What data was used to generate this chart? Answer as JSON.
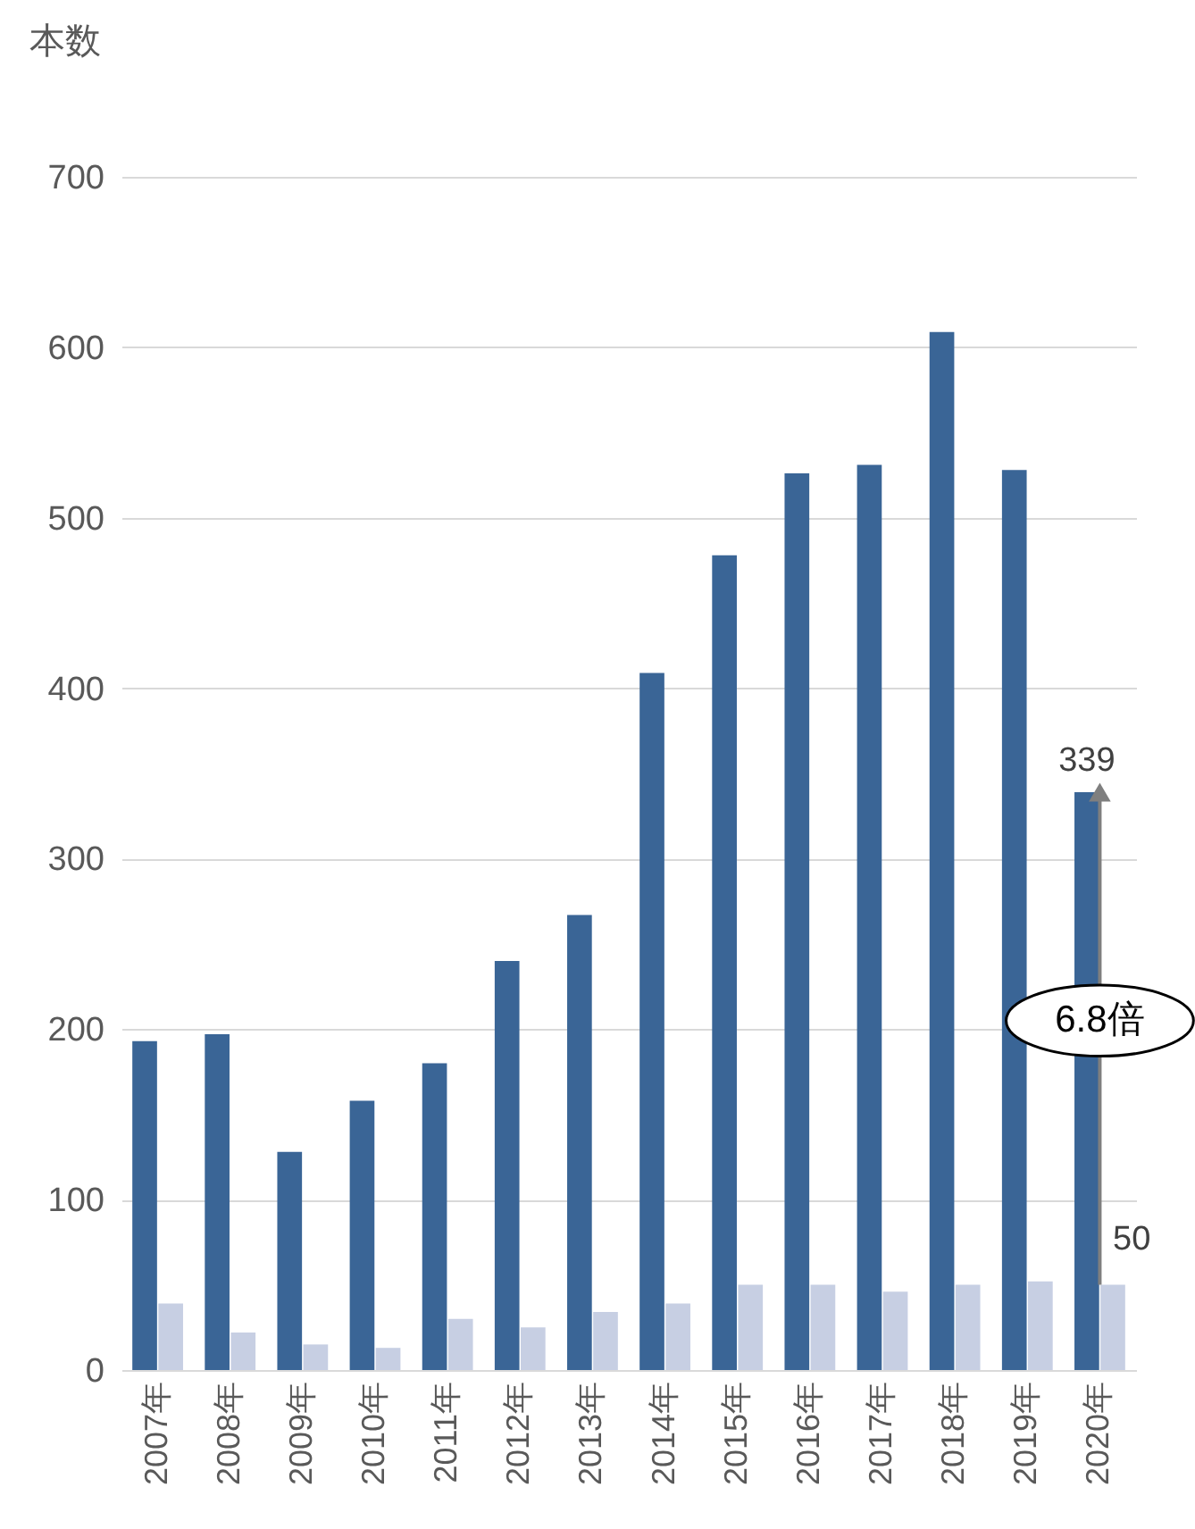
{
  "chart_data": {
    "type": "bar",
    "ylabel": "本数",
    "categories": [
      "2007年",
      "2008年",
      "2009年",
      "2010年",
      "2011年",
      "2012年",
      "2013年",
      "2014年",
      "2015年",
      "2016年",
      "2017年",
      "2018年",
      "2019年",
      "2020年"
    ],
    "series": [
      {
        "color": "#3a6596",
        "values": [
          193,
          197,
          128,
          158,
          180,
          240,
          267,
          409,
          478,
          526,
          531,
          609,
          528,
          339
        ],
        "value_labels": [
          null,
          null,
          null,
          null,
          null,
          null,
          null,
          null,
          null,
          null,
          null,
          null,
          null,
          "339"
        ]
      },
      {
        "color": "#c7cfe3",
        "values": [
          39,
          22,
          15,
          13,
          30,
          25,
          34,
          39,
          50,
          50,
          46,
          50,
          52,
          50
        ],
        "value_labels": [
          null,
          null,
          null,
          null,
          null,
          null,
          null,
          null,
          null,
          null,
          null,
          null,
          null,
          "50"
        ]
      }
    ],
    "ylim": [
      0,
      700
    ],
    "yticks": [
      0,
      100,
      200,
      300,
      400,
      500,
      600,
      700
    ],
    "grid": "y",
    "annotations": [
      {
        "text": "6.8倍",
        "x": "2020年",
        "y": 205
      }
    ]
  }
}
